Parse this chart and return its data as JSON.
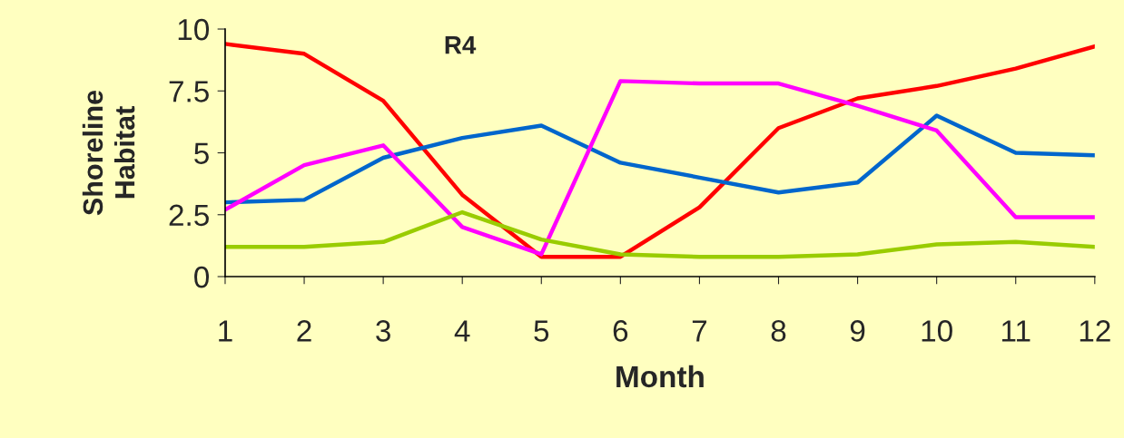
{
  "chart_data": {
    "type": "line",
    "title": "R4",
    "xlabel": "Month",
    "ylabel": "Shoreline\nHabitat",
    "x": [
      1,
      2,
      3,
      4,
      5,
      6,
      7,
      8,
      9,
      10,
      11,
      12
    ],
    "series": [
      {
        "color": "#ff0000",
        "values": [
          9.4,
          9.0,
          7.1,
          3.3,
          0.8,
          0.8,
          2.8,
          6.0,
          7.2,
          7.7,
          8.4,
          9.3
        ]
      },
      {
        "color": "#0066cc",
        "values": [
          3.0,
          3.1,
          4.8,
          5.6,
          6.1,
          4.6,
          4.0,
          3.4,
          3.8,
          6.5,
          5.0,
          4.9
        ]
      },
      {
        "color": "#ff00ff",
        "values": [
          2.7,
          4.5,
          5.3,
          2.0,
          0.9,
          7.9,
          7.8,
          7.8,
          6.9,
          5.9,
          2.4,
          2.4
        ]
      },
      {
        "color": "#99cc00",
        "values": [
          1.2,
          1.2,
          1.4,
          2.6,
          1.5,
          0.9,
          0.8,
          0.8,
          0.9,
          1.3,
          1.4,
          1.2
        ]
      }
    ],
    "xlim": [
      1,
      12
    ],
    "xticks": [
      1,
      2,
      3,
      4,
      5,
      6,
      7,
      8,
      9,
      10,
      11,
      12
    ],
    "ylim": [
      0,
      10
    ],
    "yticks": [
      0,
      2.5,
      5,
      7.5,
      10
    ],
    "grid": false,
    "legend": false
  }
}
